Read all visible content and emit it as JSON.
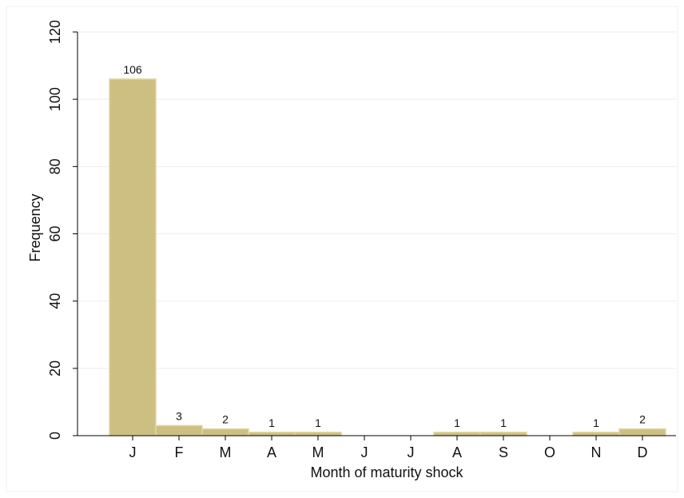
{
  "chart_data": {
    "type": "bar",
    "categories": [
      "J",
      "F",
      "M",
      "A",
      "M",
      "J",
      "J",
      "A",
      "S",
      "O",
      "N",
      "D"
    ],
    "values": [
      106,
      3,
      2,
      1,
      1,
      0,
      0,
      1,
      1,
      0,
      1,
      2
    ],
    "data_labels": [
      "106",
      "3",
      "2",
      "1",
      "1",
      "",
      "",
      "1",
      "1",
      "",
      "1",
      "2"
    ],
    "xlabel": "Month of maturity shock",
    "ylabel": "Frequency",
    "ylim": [
      0,
      120
    ],
    "yticks": [
      0,
      20,
      40,
      60,
      80,
      100,
      120
    ],
    "grid": true,
    "legend": "none",
    "colors": {
      "bar_fill": "#cdbf82",
      "bar_stroke": "#e0d6a6",
      "grid": "#e8eef2",
      "axis": "#000000",
      "outer_border": "#eef2f5"
    }
  }
}
